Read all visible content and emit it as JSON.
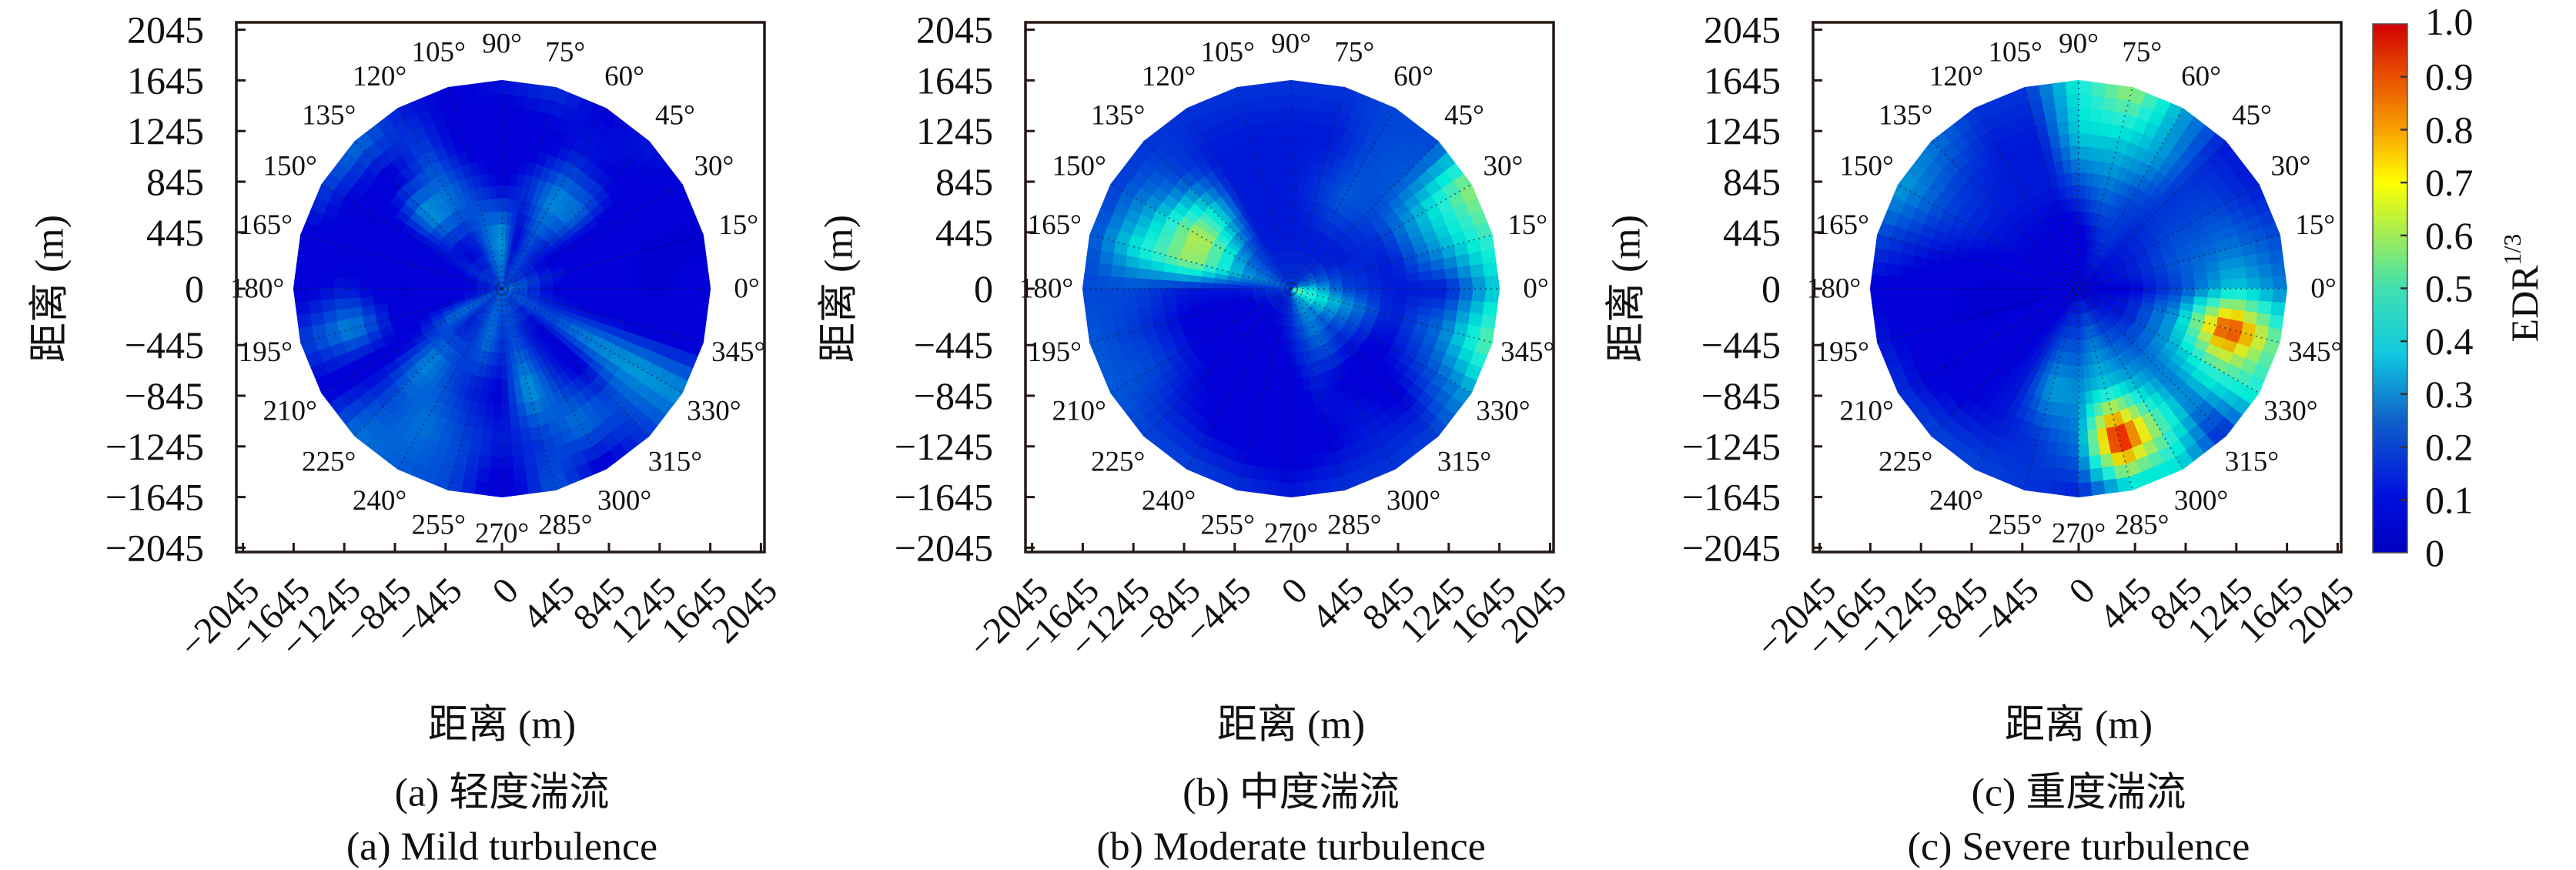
{
  "colorbar": {
    "label": "EDR",
    "label_sup": "1/3",
    "range": [
      0,
      1
    ],
    "colormap": "jet",
    "ticks": [
      0,
      0.1,
      0.2,
      0.3,
      0.4,
      0.5,
      0.6,
      0.7,
      0.8,
      0.9,
      1.0
    ],
    "tick_labels": [
      "0",
      "0.1",
      "0.2",
      "0.3",
      "0.4",
      "0.5",
      "0.6",
      "0.7",
      "0.8",
      "0.9",
      "1.0"
    ]
  },
  "chart_data": [
    {
      "type": "heatmap",
      "subtype": "polar",
      "caption_zh": "(a) 轻度湍流",
      "caption_en": "(a) Mild turbulence",
      "xlabel": "距离 (m)",
      "ylabel": "距离 (m)",
      "xlim": [
        -2045,
        2045
      ],
      "ylim": [
        -2045,
        2045
      ],
      "grid": "radial dotted spokes every 15°",
      "xticks": [
        -2045,
        -1645,
        -1245,
        -845,
        -445,
        0,
        445,
        845,
        1245,
        1645,
        2045
      ],
      "xtick_labels": [
        "−2045",
        "−1645",
        "−1245",
        "−845",
        "−445",
        "0",
        "445",
        "845",
        "1245",
        "1645",
        "2045"
      ],
      "yticks": [
        2045,
        1645,
        1245,
        845,
        445,
        0,
        -445,
        -845,
        -1245,
        -1645,
        -2045
      ],
      "ytick_labels": [
        "2045",
        "1645",
        "1245",
        "845",
        "445",
        "0",
        "−445",
        "−845",
        "−1245",
        "−1645",
        "−2045"
      ],
      "angles_deg": [
        0,
        15,
        30,
        45,
        60,
        75,
        90,
        105,
        120,
        135,
        150,
        165,
        180,
        195,
        210,
        225,
        240,
        255,
        270,
        285,
        300,
        315,
        330,
        345
      ],
      "angle_labels": [
        "0°",
        "15°",
        "30°",
        "45°",
        "60°",
        "75°",
        "90°",
        "105°",
        "120°",
        "135°",
        "150°",
        "165°",
        "180°",
        "195°",
        "210°",
        "225°",
        "240°",
        "255°",
        "270°",
        "285°",
        "300°",
        "315°",
        "330°",
        "345°"
      ],
      "radii_m": [
        0,
        411,
        822,
        1234,
        1645
      ],
      "values": [
        [
          0.25,
          0.12,
          0.1,
          0.08,
          0.1
        ],
        [
          0.25,
          0.15,
          0.1,
          0.08,
          0.08
        ],
        [
          0.22,
          0.12,
          0.08,
          0.1,
          0.12
        ],
        [
          0.2,
          0.15,
          0.25,
          0.12,
          0.15
        ],
        [
          0.2,
          0.2,
          0.28,
          0.15,
          0.12
        ],
        [
          0.2,
          0.12,
          0.18,
          0.1,
          0.18
        ],
        [
          0.22,
          0.3,
          0.12,
          0.08,
          0.15
        ],
        [
          0.22,
          0.25,
          0.18,
          0.1,
          0.12
        ],
        [
          0.2,
          0.15,
          0.25,
          0.2,
          0.15
        ],
        [
          0.2,
          0.12,
          0.3,
          0.1,
          0.25
        ],
        [
          0.2,
          0.15,
          0.12,
          0.08,
          0.2
        ],
        [
          0.18,
          0.1,
          0.1,
          0.1,
          0.12
        ],
        [
          0.18,
          0.1,
          0.08,
          0.15,
          0.1
        ],
        [
          0.18,
          0.12,
          0.1,
          0.28,
          0.18
        ],
        [
          0.2,
          0.25,
          0.12,
          0.1,
          0.12
        ],
        [
          0.2,
          0.15,
          0.28,
          0.2,
          0.25
        ],
        [
          0.22,
          0.18,
          0.2,
          0.25,
          0.22
        ],
        [
          0.22,
          0.25,
          0.15,
          0.2,
          0.2
        ],
        [
          0.22,
          0.18,
          0.12,
          0.15,
          0.08
        ],
        [
          0.22,
          0.2,
          0.3,
          0.18,
          0.22
        ],
        [
          0.22,
          0.15,
          0.18,
          0.25,
          0.1
        ],
        [
          0.22,
          0.12,
          0.1,
          0.2,
          0.18
        ],
        [
          0.22,
          0.2,
          0.28,
          0.3,
          0.28
        ],
        [
          0.22,
          0.15,
          0.12,
          0.1,
          0.1
        ]
      ]
    },
    {
      "type": "heatmap",
      "subtype": "polar",
      "caption_zh": "(b) 中度湍流",
      "caption_en": "(b) Moderate turbulence",
      "xlabel": "距离 (m)",
      "ylabel": "距离 (m)",
      "xlim": [
        -2045,
        2045
      ],
      "ylim": [
        -2045,
        2045
      ],
      "grid": "radial dotted spokes every 15°",
      "xticks": [
        -2045,
        -1645,
        -1245,
        -845,
        -445,
        0,
        445,
        845,
        1245,
        1645,
        2045
      ],
      "xtick_labels": [
        "−2045",
        "−1645",
        "−1245",
        "−845",
        "−445",
        "0",
        "445",
        "845",
        "1245",
        "1645",
        "2045"
      ],
      "yticks": [
        2045,
        1645,
        1245,
        845,
        445,
        0,
        -445,
        -845,
        -1245,
        -1645,
        -2045
      ],
      "ytick_labels": [
        "2045",
        "1645",
        "1245",
        "845",
        "445",
        "0",
        "−445",
        "−845",
        "−1245",
        "−1645",
        "−2045"
      ],
      "angles_deg": [
        0,
        15,
        30,
        45,
        60,
        75,
        90,
        105,
        120,
        135,
        150,
        165,
        180,
        195,
        210,
        225,
        240,
        255,
        270,
        285,
        300,
        315,
        330,
        345
      ],
      "angle_labels": [
        "0°",
        "15°",
        "30°",
        "45°",
        "60°",
        "75°",
        "90°",
        "105°",
        "120°",
        "135°",
        "150°",
        "165°",
        "180°",
        "195°",
        "210°",
        "225°",
        "240°",
        "255°",
        "270°",
        "285°",
        "300°",
        "315°",
        "330°",
        "345°"
      ],
      "radii_m": [
        0,
        411,
        822,
        1234,
        1645
      ],
      "values": [
        [
          0.45,
          0.2,
          0.15,
          0.15,
          0.35
        ],
        [
          0.3,
          0.18,
          0.15,
          0.3,
          0.45
        ],
        [
          0.25,
          0.15,
          0.18,
          0.35,
          0.55
        ],
        [
          0.2,
          0.15,
          0.2,
          0.22,
          0.2
        ],
        [
          0.18,
          0.15,
          0.22,
          0.2,
          0.2
        ],
        [
          0.18,
          0.15,
          0.18,
          0.15,
          0.18
        ],
        [
          0.18,
          0.15,
          0.15,
          0.15,
          0.18
        ],
        [
          0.18,
          0.15,
          0.15,
          0.15,
          0.18
        ],
        [
          0.18,
          0.15,
          0.15,
          0.15,
          0.18
        ],
        [
          0.18,
          0.2,
          0.38,
          0.2,
          0.18
        ],
        [
          0.2,
          0.25,
          0.6,
          0.3,
          0.18
        ],
        [
          0.2,
          0.3,
          0.55,
          0.4,
          0.2
        ],
        [
          0.2,
          0.15,
          0.15,
          0.2,
          0.2
        ],
        [
          0.2,
          0.12,
          0.12,
          0.18,
          0.22
        ],
        [
          0.18,
          0.1,
          0.12,
          0.2,
          0.22
        ],
        [
          0.18,
          0.1,
          0.12,
          0.15,
          0.2
        ],
        [
          0.18,
          0.1,
          0.1,
          0.12,
          0.2
        ],
        [
          0.18,
          0.12,
          0.1,
          0.1,
          0.18
        ],
        [
          0.2,
          0.15,
          0.1,
          0.1,
          0.15
        ],
        [
          0.25,
          0.2,
          0.15,
          0.12,
          0.18
        ],
        [
          0.3,
          0.25,
          0.12,
          0.15,
          0.18
        ],
        [
          0.35,
          0.2,
          0.1,
          0.12,
          0.2
        ],
        [
          0.45,
          0.25,
          0.12,
          0.2,
          0.3
        ],
        [
          0.5,
          0.3,
          0.15,
          0.25,
          0.5
        ]
      ]
    },
    {
      "type": "heatmap",
      "subtype": "polar",
      "caption_zh": "(c) 重度湍流",
      "caption_en": "(c) Severe turbulence",
      "xlabel": "距离 (m)",
      "ylabel": "距离 (m)",
      "xlim": [
        -2045,
        2045
      ],
      "ylim": [
        -2045,
        2045
      ],
      "grid": "radial dotted spokes every 15°",
      "xticks": [
        -2045,
        -1645,
        -1245,
        -845,
        -445,
        0,
        445,
        845,
        1245,
        1645,
        2045
      ],
      "xtick_labels": [
        "−2045",
        "−1645",
        "−1245",
        "−845",
        "−445",
        "0",
        "445",
        "845",
        "1245",
        "1645",
        "2045"
      ],
      "yticks": [
        2045,
        1645,
        1245,
        845,
        445,
        0,
        -445,
        -845,
        -1245,
        -1645,
        -2045
      ],
      "ytick_labels": [
        "2045",
        "1645",
        "1245",
        "845",
        "445",
        "0",
        "−445",
        "−845",
        "−1245",
        "−1645",
        "−2045"
      ],
      "angles_deg": [
        0,
        15,
        30,
        45,
        60,
        75,
        90,
        105,
        120,
        135,
        150,
        165,
        180,
        195,
        210,
        225,
        240,
        255,
        270,
        285,
        300,
        315,
        330,
        345
      ],
      "angle_labels": [
        "0°",
        "15°",
        "30°",
        "45°",
        "60°",
        "75°",
        "90°",
        "105°",
        "120°",
        "135°",
        "150°",
        "165°",
        "180°",
        "195°",
        "210°",
        "225°",
        "240°",
        "255°",
        "270°",
        "285°",
        "300°",
        "315°",
        "330°",
        "345°"
      ],
      "radii_m": [
        0,
        411,
        822,
        1234,
        1645
      ],
      "values": [
        [
          0.12,
          0.12,
          0.2,
          0.35,
          0.25
        ],
        [
          0.12,
          0.15,
          0.22,
          0.25,
          0.2
        ],
        [
          0.12,
          0.15,
          0.2,
          0.2,
          0.15
        ],
        [
          0.12,
          0.15,
          0.18,
          0.18,
          0.15
        ],
        [
          0.12,
          0.18,
          0.2,
          0.3,
          0.3
        ],
        [
          0.12,
          0.15,
          0.25,
          0.35,
          0.55
        ],
        [
          0.12,
          0.1,
          0.2,
          0.35,
          0.4
        ],
        [
          0.12,
          0.1,
          0.15,
          0.15,
          0.18
        ],
        [
          0.12,
          0.12,
          0.15,
          0.15,
          0.18
        ],
        [
          0.12,
          0.12,
          0.15,
          0.18,
          0.25
        ],
        [
          0.12,
          0.12,
          0.15,
          0.2,
          0.3
        ],
        [
          0.12,
          0.1,
          0.12,
          0.15,
          0.2
        ],
        [
          0.1,
          0.08,
          0.08,
          0.1,
          0.12
        ],
        [
          0.1,
          0.08,
          0.08,
          0.1,
          0.15
        ],
        [
          0.1,
          0.1,
          0.1,
          0.08,
          0.18
        ],
        [
          0.1,
          0.1,
          0.12,
          0.12,
          0.2
        ],
        [
          0.12,
          0.15,
          0.15,
          0.15,
          0.2
        ],
        [
          0.12,
          0.2,
          0.3,
          0.18,
          0.18
        ],
        [
          0.12,
          0.2,
          0.28,
          0.25,
          0.15
        ],
        [
          0.12,
          0.25,
          0.35,
          0.95,
          0.3
        ],
        [
          0.12,
          0.2,
          0.3,
          0.5,
          0.35
        ],
        [
          0.12,
          0.18,
          0.25,
          0.25,
          0.15
        ],
        [
          0.12,
          0.15,
          0.3,
          0.45,
          0.4
        ],
        [
          0.12,
          0.15,
          0.3,
          0.88,
          0.45
        ]
      ]
    }
  ]
}
